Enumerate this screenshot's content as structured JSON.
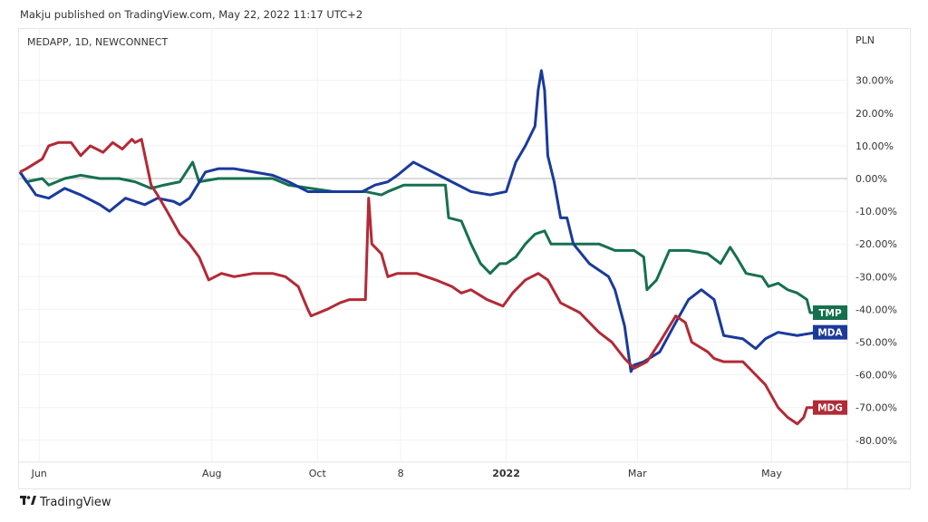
{
  "header": {
    "published": "Makju published on TradingView.com, May 22, 2022 11:17 UTC+2"
  },
  "symbol_info": "MEDAPP, 1D, NEWCONNECT",
  "currency": "PLN",
  "footer": {
    "brand": "TradingView",
    "logo_icon": "tradingview-logo-icon"
  },
  "chart_data": {
    "type": "line",
    "title": "MEDAPP, 1D, NEWCONNECT",
    "xlabel": "",
    "ylabel": "PLN",
    "ylim": [
      -85,
      40
    ],
    "grid": true,
    "y_ticks": [
      {
        "value": 30,
        "label": "30.00%"
      },
      {
        "value": 20,
        "label": "20.00%"
      },
      {
        "value": 10,
        "label": "10.00%"
      },
      {
        "value": 0,
        "label": "0.00%"
      },
      {
        "value": -10,
        "label": "-10.00%"
      },
      {
        "value": -20,
        "label": "-20.00%"
      },
      {
        "value": -30,
        "label": "-30.00%"
      },
      {
        "value": -40,
        "label": "-40.00%"
      },
      {
        "value": -50,
        "label": "-50.00%"
      },
      {
        "value": -60,
        "label": "-60.00%"
      },
      {
        "value": -70,
        "label": "-70.00%"
      },
      {
        "value": -80,
        "label": "-80.00%"
      }
    ],
    "x_ticks": [
      {
        "bar": 6,
        "label": "Jun",
        "bold": false
      },
      {
        "bar": 60,
        "label": "Aug",
        "bold": false
      },
      {
        "bar": 93,
        "label": "Oct",
        "bold": false
      },
      {
        "bar": 119,
        "label": "8",
        "bold": false
      },
      {
        "bar": 152,
        "label": "2022",
        "bold": true
      },
      {
        "bar": 193,
        "label": "Mar",
        "bold": false
      },
      {
        "bar": 235,
        "label": "May",
        "bold": false
      }
    ],
    "series": [
      {
        "name": "TMP",
        "color": "#16704f",
        "last": -41,
        "points": [
          [
            0,
            2
          ],
          [
            2,
            -1
          ],
          [
            7,
            0
          ],
          [
            9,
            -2
          ],
          [
            14,
            0
          ],
          [
            19,
            1
          ],
          [
            25,
            0
          ],
          [
            31,
            0
          ],
          [
            36,
            -1
          ],
          [
            41,
            -3
          ],
          [
            45,
            -2
          ],
          [
            50,
            -1
          ],
          [
            54,
            5
          ],
          [
            56,
            -1
          ],
          [
            62,
            0
          ],
          [
            67,
            0
          ],
          [
            73,
            0
          ],
          [
            79,
            0
          ],
          [
            84,
            -2
          ],
          [
            91,
            -3
          ],
          [
            98,
            -4
          ],
          [
            104,
            -4
          ],
          [
            108,
            -4
          ],
          [
            113,
            -5
          ],
          [
            115,
            -4
          ],
          [
            120,
            -2
          ],
          [
            125,
            -2
          ],
          [
            133,
            -2
          ],
          [
            134,
            -12
          ],
          [
            138,
            -13
          ],
          [
            141,
            -20
          ],
          [
            144,
            -26
          ],
          [
            147,
            -29
          ],
          [
            150,
            -26
          ],
          [
            152,
            -26
          ],
          [
            155,
            -24
          ],
          [
            158,
            -20
          ],
          [
            161,
            -17
          ],
          [
            164,
            -16
          ],
          [
            166,
            -20
          ],
          [
            169,
            -20
          ],
          [
            175,
            -20
          ],
          [
            181,
            -20
          ],
          [
            186,
            -22
          ],
          [
            192,
            -22
          ],
          [
            195,
            -24
          ],
          [
            196,
            -34
          ],
          [
            199,
            -31
          ],
          [
            203,
            -22
          ],
          [
            209,
            -22
          ],
          [
            215,
            -23
          ],
          [
            219,
            -26
          ],
          [
            222,
            -21
          ],
          [
            224,
            -24
          ],
          [
            227,
            -29
          ],
          [
            232,
            -30
          ],
          [
            234,
            -33
          ],
          [
            237,
            -32
          ],
          [
            240,
            -34
          ],
          [
            243,
            -35
          ],
          [
            246,
            -37
          ],
          [
            247,
            -41
          ],
          [
            249,
            -41
          ]
        ]
      },
      {
        "name": "MDA",
        "color": "#1a3a9c",
        "last": -47,
        "points": [
          [
            0,
            2
          ],
          [
            5,
            -5
          ],
          [
            9,
            -6
          ],
          [
            14,
            -3
          ],
          [
            19,
            -5
          ],
          [
            25,
            -8
          ],
          [
            28,
            -10
          ],
          [
            33,
            -6
          ],
          [
            39,
            -8
          ],
          [
            43,
            -6
          ],
          [
            48,
            -7
          ],
          [
            50,
            -8
          ],
          [
            53,
            -6
          ],
          [
            58,
            2
          ],
          [
            62,
            3
          ],
          [
            67,
            3
          ],
          [
            73,
            2
          ],
          [
            79,
            1
          ],
          [
            84,
            -1
          ],
          [
            90,
            -4
          ],
          [
            96,
            -4
          ],
          [
            101,
            -4
          ],
          [
            107,
            -4
          ],
          [
            111,
            -2
          ],
          [
            115,
            -1
          ],
          [
            118,
            1
          ],
          [
            123,
            5
          ],
          [
            127,
            3
          ],
          [
            131,
            1
          ],
          [
            135,
            -1
          ],
          [
            141,
            -4
          ],
          [
            147,
            -5
          ],
          [
            152,
            -4
          ],
          [
            155,
            5
          ],
          [
            158,
            10
          ],
          [
            161,
            16
          ],
          [
            162,
            27
          ],
          [
            163,
            33
          ],
          [
            164,
            27
          ],
          [
            165,
            7
          ],
          [
            167,
            -1
          ],
          [
            169,
            -12
          ],
          [
            171,
            -12
          ],
          [
            173,
            -20
          ],
          [
            178,
            -26
          ],
          [
            184,
            -30
          ],
          [
            186,
            -34
          ],
          [
            189,
            -45
          ],
          [
            191,
            -59
          ],
          [
            192,
            -57
          ],
          [
            195,
            -56
          ],
          [
            200,
            -53
          ],
          [
            205,
            -44
          ],
          [
            209,
            -37
          ],
          [
            213,
            -34
          ],
          [
            217,
            -37
          ],
          [
            220,
            -48
          ],
          [
            226,
            -49
          ],
          [
            230,
            -52
          ],
          [
            233,
            -49
          ],
          [
            237,
            -47
          ],
          [
            243,
            -48
          ],
          [
            249,
            -47
          ]
        ]
      },
      {
        "name": "MDG",
        "color": "#b22a36",
        "last": -70,
        "points": [
          [
            0,
            2
          ],
          [
            2,
            3
          ],
          [
            7,
            6
          ],
          [
            9,
            10
          ],
          [
            12,
            11
          ],
          [
            16,
            11
          ],
          [
            19,
            7
          ],
          [
            22,
            10
          ],
          [
            26,
            8
          ],
          [
            29,
            11
          ],
          [
            32,
            9
          ],
          [
            35,
            12
          ],
          [
            36,
            11
          ],
          [
            38,
            12
          ],
          [
            41,
            -2
          ],
          [
            43,
            -5
          ],
          [
            46,
            -10
          ],
          [
            50,
            -17
          ],
          [
            53,
            -20
          ],
          [
            56,
            -24
          ],
          [
            59,
            -31
          ],
          [
            63,
            -29
          ],
          [
            67,
            -30
          ],
          [
            73,
            -29
          ],
          [
            79,
            -29
          ],
          [
            83,
            -30
          ],
          [
            87,
            -33
          ],
          [
            90,
            -40
          ],
          [
            91,
            -42
          ],
          [
            96,
            -40
          ],
          [
            100,
            -38
          ],
          [
            103,
            -37
          ],
          [
            106,
            -37
          ],
          [
            108,
            -37
          ],
          [
            109,
            -6
          ],
          [
            110,
            -20
          ],
          [
            113,
            -23
          ],
          [
            115,
            -30
          ],
          [
            118,
            -29
          ],
          [
            124,
            -29
          ],
          [
            130,
            -31
          ],
          [
            135,
            -33
          ],
          [
            138,
            -35
          ],
          [
            141,
            -34
          ],
          [
            146,
            -37
          ],
          [
            151,
            -39
          ],
          [
            154,
            -35
          ],
          [
            158,
            -31
          ],
          [
            162,
            -29
          ],
          [
            165,
            -31
          ],
          [
            169,
            -38
          ],
          [
            175,
            -41
          ],
          [
            181,
            -47
          ],
          [
            185,
            -50
          ],
          [
            189,
            -55
          ],
          [
            192,
            -58
          ],
          [
            196,
            -56
          ],
          [
            200,
            -50
          ],
          [
            205,
            -42
          ],
          [
            208,
            -44
          ],
          [
            210,
            -50
          ],
          [
            215,
            -53
          ],
          [
            217,
            -55
          ],
          [
            220,
            -56
          ],
          [
            226,
            -56
          ],
          [
            229,
            -59
          ],
          [
            233,
            -63
          ],
          [
            237,
            -70
          ],
          [
            240,
            -73
          ],
          [
            243,
            -75
          ],
          [
            245,
            -73
          ],
          [
            246,
            -70
          ],
          [
            249,
            -70
          ]
        ]
      }
    ]
  }
}
